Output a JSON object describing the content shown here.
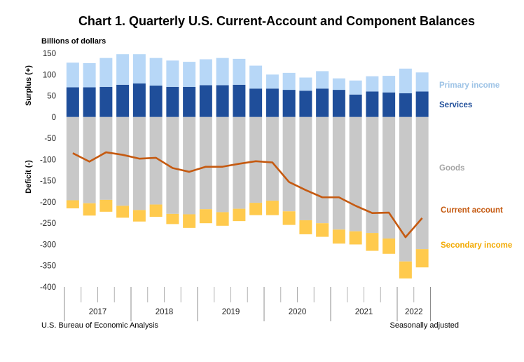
{
  "chart_data": {
    "type": "bar",
    "title": "Chart 1. Quarterly U.S. Current-Account and Component Balances",
    "units_label": "Billions of dollars",
    "surplus_label": "Surplus (+)",
    "deficit_label": "Deficit (-)",
    "ylim": [
      -400,
      150
    ],
    "yticks": [
      150,
      100,
      50,
      0,
      -50,
      -100,
      -150,
      -200,
      -250,
      -300,
      -350,
      -400
    ],
    "years": [
      "2017",
      "2018",
      "2019",
      "2020",
      "2021",
      "2022"
    ],
    "series": [
      {
        "name": "Services",
        "color": "#1F4E9A",
        "values": [
          70,
          70,
          71,
          76,
          79,
          74,
          71,
          71,
          75,
          75,
          76,
          67,
          67,
          64,
          62,
          67,
          64,
          53,
          60,
          58,
          56,
          60
        ]
      },
      {
        "name": "Primary income",
        "color": "#B7D7F7",
        "values": [
          58,
          57,
          68,
          72,
          69,
          65,
          62,
          59,
          61,
          64,
          61,
          54,
          33,
          40,
          31,
          41,
          27,
          33,
          36,
          39,
          58,
          45
        ]
      },
      {
        "name": "Goods",
        "color": "#C8C8C8",
        "values": [
          -196,
          -203,
          -195,
          -209,
          -219,
          -206,
          -228,
          -229,
          -217,
          -224,
          -216,
          -202,
          -197,
          -222,
          -243,
          -250,
          -265,
          -269,
          -273,
          -286,
          -340,
          -311
        ]
      },
      {
        "name": "Secondary income",
        "color": "#FFCA4D",
        "values": [
          -19,
          -29,
          -28,
          -28,
          -27,
          -29,
          -24,
          -32,
          -33,
          -32,
          -29,
          -29,
          -34,
          -32,
          -33,
          -32,
          -33,
          -31,
          -42,
          -36,
          -40,
          -43
        ]
      },
      {
        "name": "Current account",
        "color": "#C55A11",
        "values": [
          -85,
          -105,
          -83,
          -89,
          -98,
          -96,
          -120,
          -129,
          -117,
          -117,
          -110,
          -104,
          -107,
          -153,
          -172,
          -189,
          -189,
          -209,
          -226,
          -225,
          -283,
          -238
        ]
      }
    ],
    "legend": {
      "primary_income": "Primary income",
      "services": "Services",
      "goods": "Goods",
      "current_account": "Current account",
      "secondary_income": "Secondary income"
    },
    "source": "U.S. Bureau of Economic Analysis",
    "note": "Seasonally adjusted"
  }
}
